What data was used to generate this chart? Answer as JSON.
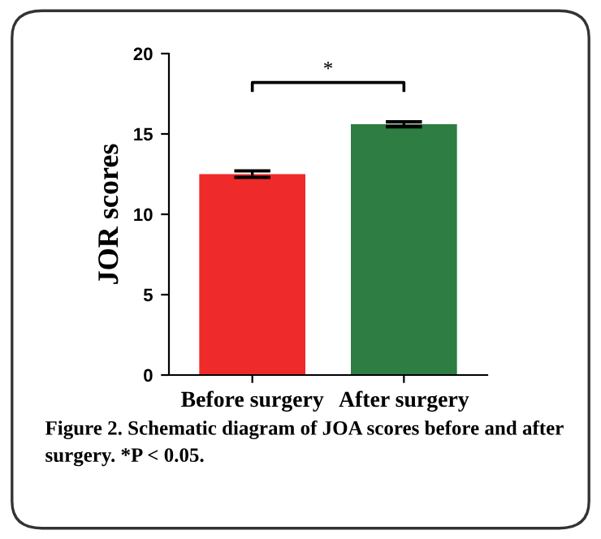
{
  "chart_data": {
    "type": "bar",
    "ylabel": "JOR scores",
    "categories": [
      "Before surgery",
      "After surgery"
    ],
    "series": [
      {
        "values": [
          12.5,
          15.6
        ],
        "colors": [
          "#ee2a2a",
          "#2e7d43"
        ],
        "errors": [
          0.2,
          0.15
        ]
      }
    ],
    "ylim": [
      0,
      20
    ],
    "yticks": [
      0,
      5,
      10,
      15,
      20
    ],
    "grid": false,
    "annotations": [
      "*",
      "Figure 2. Schematic diagram of JOA scores before and after surgery. *P < 0.05."
    ]
  }
}
